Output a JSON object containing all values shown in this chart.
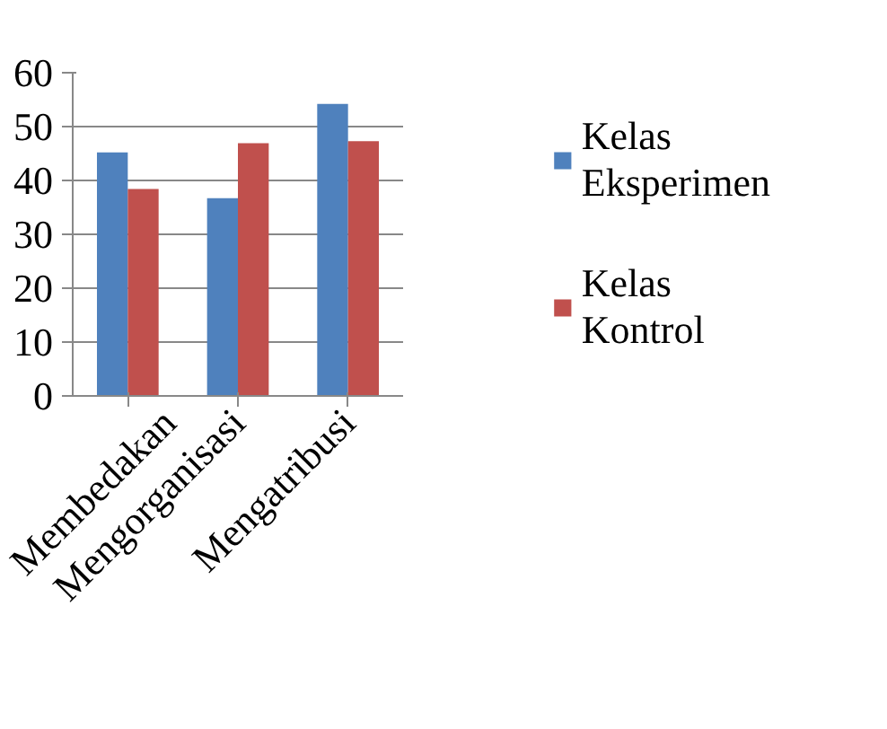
{
  "chart_data": {
    "type": "bar",
    "categories": [
      "Membedakan",
      "Mengorganisasi",
      "Mengatribusi"
    ],
    "series": [
      {
        "name": "Kelas Eksperimen",
        "color": "#4f81bd",
        "values": [
          45.2,
          36.7,
          54.2
        ]
      },
      {
        "name": "Kelas Kontrol",
        "color": "#c0504d",
        "values": [
          38.4,
          46.9,
          47.3
        ]
      }
    ],
    "ylim": [
      0,
      60
    ],
    "yticks": [
      0,
      10,
      20,
      30,
      40,
      50,
      60
    ],
    "grid": "y",
    "legend": "right"
  }
}
